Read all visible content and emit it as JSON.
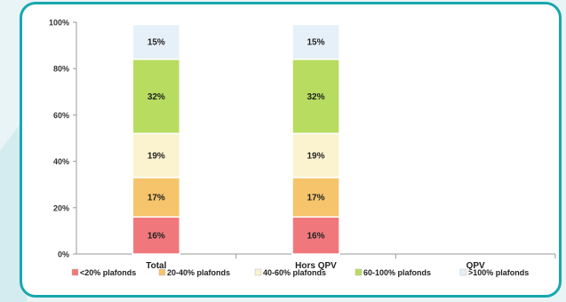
{
  "chart_data": {
    "type": "bar",
    "stacked": true,
    "categories": [
      "Total",
      "Hors QPV",
      "QPV"
    ],
    "ylim": [
      0,
      100
    ],
    "yticks": [
      "0%",
      "20%",
      "40%",
      "60%",
      "80%",
      "100%"
    ],
    "series": [
      {
        "name": "<20% plafonds",
        "color": "#f0787c",
        "values": [
          16,
          16,
          null
        ],
        "labels": [
          "16%",
          "16%",
          ""
        ]
      },
      {
        "name": "20-40% plafonds",
        "color": "#f5c46b",
        "values": [
          17,
          17,
          null
        ],
        "labels": [
          "17%",
          "17%",
          ""
        ]
      },
      {
        "name": "40-60% plafonds",
        "color": "#fbf3d0",
        "values": [
          19,
          19,
          null
        ],
        "labels": [
          "19%",
          "19%",
          ""
        ]
      },
      {
        "name": "60-100% plafonds",
        "color": "#b7dc5f",
        "values": [
          32,
          32,
          null
        ],
        "labels": [
          "32%",
          "32%",
          ""
        ]
      },
      {
        "name": ">100% plafonds",
        "color": "#e6f0f8",
        "values": [
          15,
          15,
          null
        ],
        "labels": [
          "15%",
          "15%",
          ""
        ]
      }
    ],
    "grid": false,
    "legend_position": "bottom"
  }
}
